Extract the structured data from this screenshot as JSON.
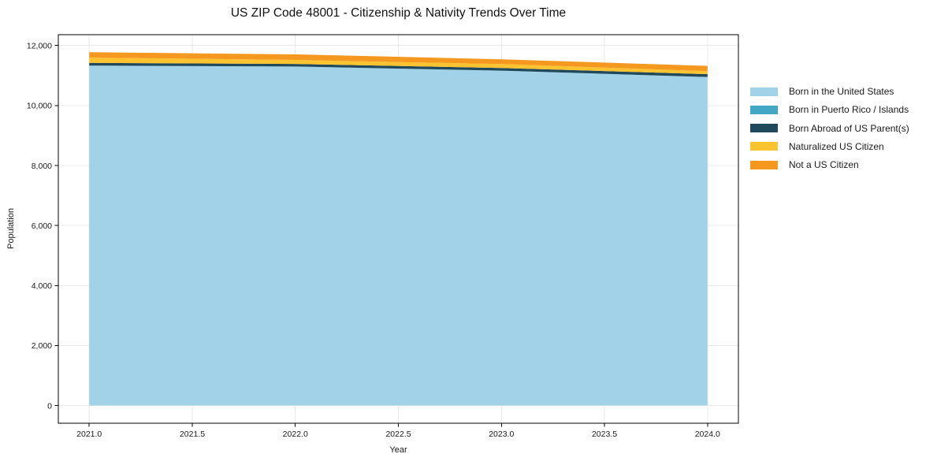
{
  "chart_data": {
    "type": "area",
    "stacked": true,
    "title": "US ZIP Code 48001 - Citizenship & Nativity Trends Over Time",
    "xlabel": "Year",
    "ylabel": "Population",
    "x": [
      2021,
      2022,
      2023,
      2024
    ],
    "series": [
      {
        "name": "Born in the United States",
        "color": "#a2d2e8",
        "values": [
          11330,
          11300,
          11160,
          10950
        ]
      },
      {
        "name": "Born in Puerto Rico / Islands",
        "color": "#42a6c5",
        "values": [
          0,
          0,
          0,
          0
        ]
      },
      {
        "name": "Born Abroad of US Parent(s)",
        "color": "#21495c",
        "values": [
          90,
          85,
          90,
          95
        ]
      },
      {
        "name": "Naturalized US Citizen",
        "color": "#fcc331",
        "values": [
          175,
          135,
          130,
          100
        ]
      },
      {
        "name": "Not a US Citizen",
        "color": "#f5981f",
        "values": [
          180,
          185,
          160,
          175
        ]
      }
    ],
    "xlim": [
      2020.85,
      2024.15
    ],
    "ylim": [
      -590,
      12360
    ],
    "xticks": [
      2021.0,
      2021.5,
      2022.0,
      2022.5,
      2023.0,
      2023.5,
      2024.0
    ],
    "xtick_labels": [
      "2021.0",
      "2021.5",
      "2022.0",
      "2022.5",
      "2023.0",
      "2023.5",
      "2024.0"
    ],
    "yticks": [
      0,
      2000,
      4000,
      6000,
      8000,
      10000,
      12000
    ],
    "ytick_labels": [
      "0",
      "2,000",
      "4,000",
      "6,000",
      "8,000",
      "10,000",
      "12,000"
    ],
    "grid": true,
    "grid_color": "#e9e9e9",
    "axis_color": "#000000",
    "legend_position": "right of plot, no frame"
  }
}
